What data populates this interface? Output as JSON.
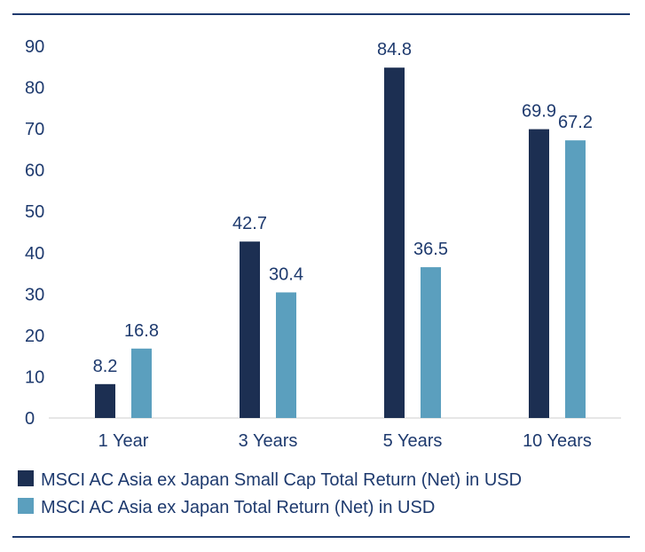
{
  "chart_data": {
    "type": "bar",
    "categories": [
      "1 Year",
      "3 Years",
      "5 Years",
      "10 Years"
    ],
    "series": [
      {
        "name": "MSCI AC Asia ex Japan Small Cap Total Return (Net) in USD",
        "values": [
          8.2,
          42.7,
          84.8,
          69.9
        ],
        "labels": [
          "8.2",
          "42.7",
          "84.8",
          "69.9"
        ],
        "color": "#1c2f52"
      },
      {
        "name": "MSCI AC Asia ex Japan Total Return (Net) in USD",
        "values": [
          16.8,
          30.4,
          36.5,
          67.2
        ],
        "labels": [
          "16.8",
          "30.4",
          "36.5",
          "67.2"
        ],
        "color": "#5b9fbe"
      }
    ],
    "ylim": [
      0,
      90
    ],
    "yticks": [
      "0",
      "10",
      "20",
      "30",
      "40",
      "50",
      "60",
      "70",
      "80",
      "90"
    ],
    "grid": false,
    "legend_position": "bottom-left",
    "text_color": "#1e3a6e",
    "rule_color": "#1e3a6e",
    "axis_color": "#cccccc"
  }
}
